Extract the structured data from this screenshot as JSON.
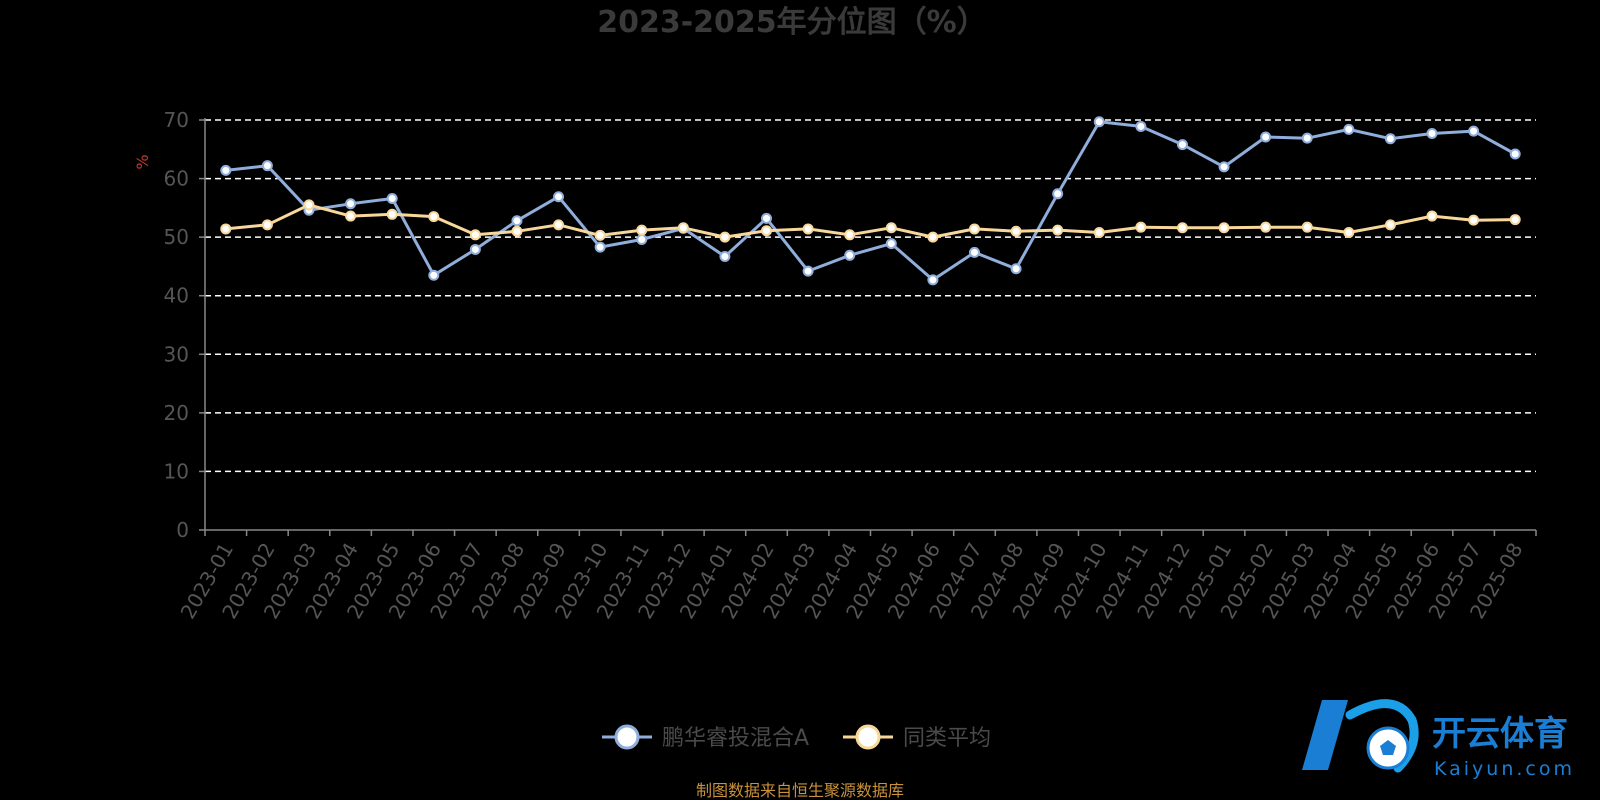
{
  "colors": {
    "series_a": "#8faedb",
    "series_b": "#f8d79a",
    "grid": "#ffffff",
    "axis": "#888888",
    "ylabel": "#c0392b",
    "logo": "#1a7fd4"
  },
  "chart_data": {
    "type": "line",
    "title": "2023-2025年分位图（%）",
    "ylabel": "%",
    "xlabel": "",
    "ylim": [
      0,
      70
    ],
    "yticks": [
      0,
      10,
      20,
      30,
      40,
      50,
      60,
      70
    ],
    "grid": true,
    "legend_position": "bottom-center",
    "categories": [
      "2023-01",
      "2023-02",
      "2023-03",
      "2023-04",
      "2023-05",
      "2023-06",
      "2023-07",
      "2023-08",
      "2023-09",
      "2023-10",
      "2023-11",
      "2023-12",
      "2024-01",
      "2024-02",
      "2024-03",
      "2024-04",
      "2024-05",
      "2024-06",
      "2024-07",
      "2024-08",
      "2024-09",
      "2024-10",
      "2024-11",
      "2024-12",
      "2025-01",
      "2025-02",
      "2025-03",
      "2025-04",
      "2025-05",
      "2025-06",
      "2025-07",
      "2025-08"
    ],
    "series": [
      {
        "name": "鹏华睿投混合A",
        "values": [
          61.4,
          62.2,
          54.6,
          55.7,
          56.6,
          43.5,
          47.9,
          52.8,
          56.9,
          48.3,
          49.6,
          51.5,
          46.7,
          53.2,
          44.2,
          46.9,
          48.9,
          42.7,
          47.4,
          44.6,
          57.4,
          69.7,
          68.9,
          65.8,
          62.0,
          67.1,
          66.9,
          68.4,
          66.8,
          67.7,
          68.1,
          64.2
        ]
      },
      {
        "name": "同类平均",
        "values": [
          51.4,
          52.1,
          55.5,
          53.6,
          53.9,
          53.5,
          50.4,
          51.0,
          52.1,
          50.3,
          51.2,
          51.6,
          50.0,
          51.1,
          51.4,
          50.4,
          51.6,
          50.0,
          51.4,
          51.0,
          51.2,
          50.8,
          51.7,
          51.6,
          51.6,
          51.7,
          51.7,
          50.8,
          52.1,
          53.6,
          52.9,
          53.0
        ]
      }
    ]
  },
  "source_text": "制图数据来自恒生聚源数据库",
  "logo": {
    "mark": "K",
    "cn": "开云体育",
    "en": "Kaiyun.com"
  }
}
